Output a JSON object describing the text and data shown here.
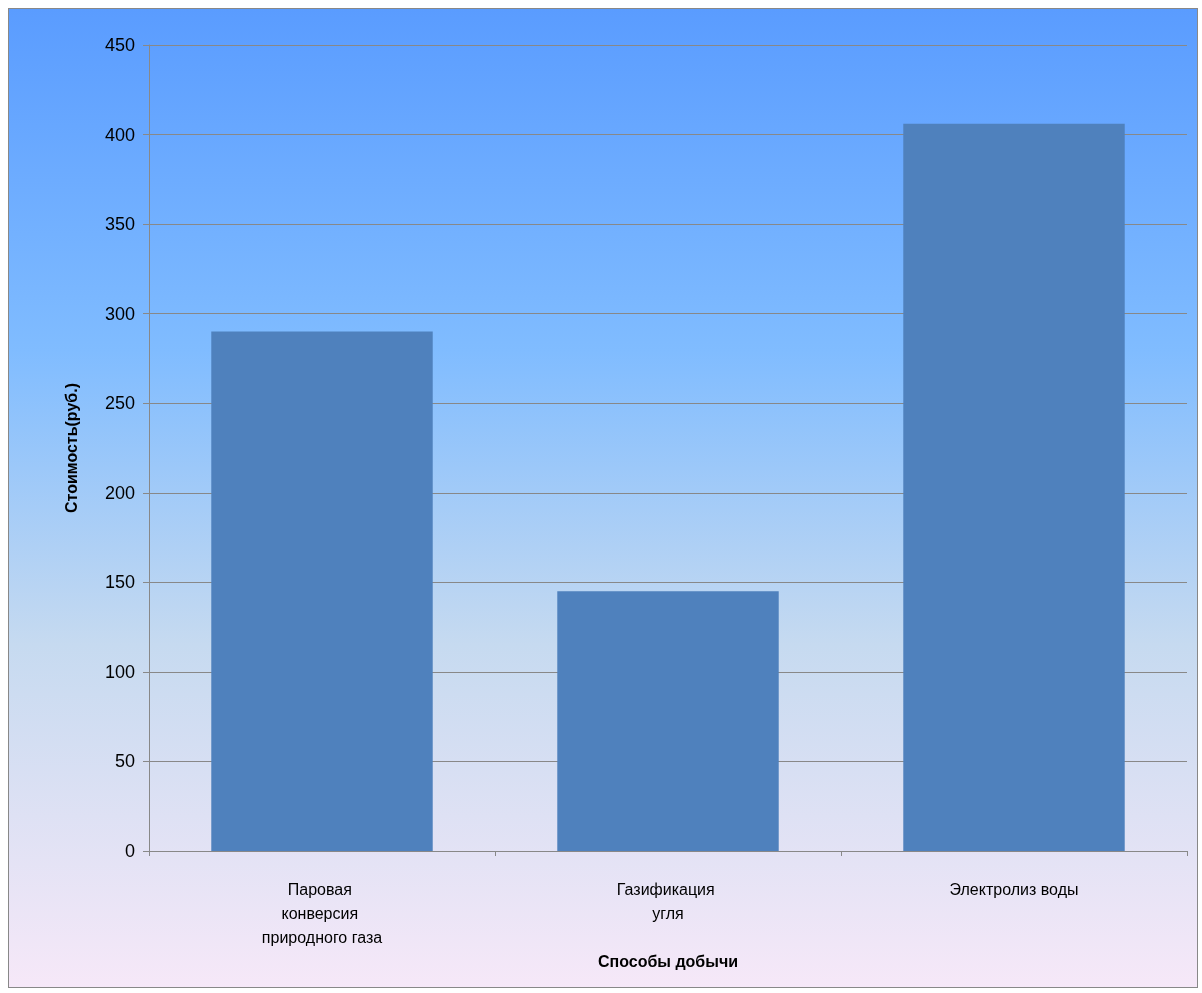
{
  "chart_data": {
    "type": "bar",
    "xlabel": "Способы добычи",
    "ylabel": "Стоимость(руб.)",
    "categories": [
      "Паровая конверсия природного газа",
      "Газификация угля",
      "Электролиз воды"
    ],
    "values": [
      290,
      145,
      406
    ],
    "color": "#4f81bd",
    "ylim": [
      0,
      450
    ],
    "yticks": [
      0,
      50,
      100,
      150,
      200,
      250,
      300,
      350,
      400,
      450
    ],
    "grid": true
  }
}
